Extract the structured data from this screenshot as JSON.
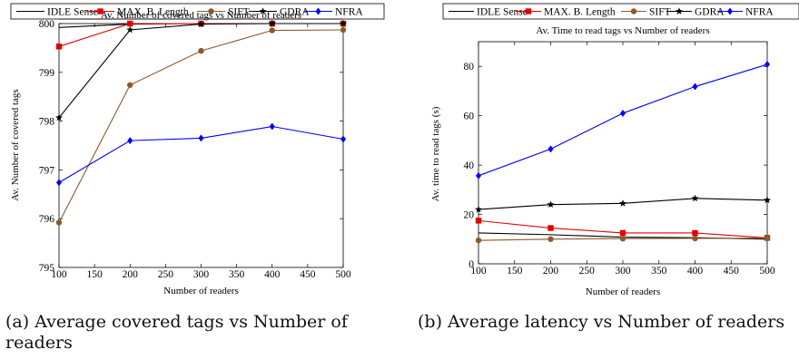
{
  "captions": {
    "a": "(a) Average covered tags vs Number of readers",
    "b": "(b) Average latency vs Number of readers"
  },
  "chart_data": [
    {
      "type": "line",
      "title": "Av. Number of covered tags vs Number of readers",
      "xlabel": "Number of readers",
      "ylabel": "Av. Number of covered tags",
      "xlim": [
        100,
        500
      ],
      "ylim": [
        795,
        800
      ],
      "xticks": [
        100,
        150,
        200,
        250,
        300,
        350,
        400,
        450,
        500
      ],
      "yticks": [
        795,
        796,
        797,
        798,
        799,
        800
      ],
      "x": [
        100,
        200,
        300,
        400,
        500
      ],
      "legend": "top, above plot",
      "grid": false,
      "series": [
        {
          "name": "IDLE Sense",
          "color": "#000000",
          "marker": "none",
          "values": [
            799.92,
            799.99,
            800.0,
            800.0,
            800.0
          ]
        },
        {
          "name": "MAX. B. Length",
          "color": "#e00000",
          "marker": "square",
          "values": [
            799.53,
            800.0,
            800.0,
            800.0,
            800.0
          ]
        },
        {
          "name": "SIFT",
          "color": "#8b5a2b",
          "marker": "circle",
          "values": [
            795.92,
            798.74,
            799.44,
            799.86,
            799.87
          ]
        },
        {
          "name": "GDRA",
          "color": "#000000",
          "marker": "star",
          "values": [
            798.07,
            799.87,
            799.99,
            800.0,
            800.0
          ]
        },
        {
          "name": "NFRA",
          "color": "#0000ff",
          "marker": "diamond",
          "values": [
            796.74,
            797.6,
            797.65,
            797.89,
            797.63
          ]
        }
      ]
    },
    {
      "type": "line",
      "title": "Av. Time to read tags vs Number of readers",
      "xlabel": "Number of readers",
      "ylabel": "Av. time to read tags (s)",
      "xlim": [
        100,
        500
      ],
      "ylim": [
        0,
        90
      ],
      "xticks": [
        100,
        150,
        200,
        250,
        300,
        350,
        400,
        450,
        500
      ],
      "yticks": [
        0,
        20,
        40,
        60,
        80
      ],
      "x": [
        100,
        200,
        300,
        400,
        500
      ],
      "legend": "top, above plot",
      "grid": false,
      "series": [
        {
          "name": "IDLE Sense",
          "color": "#000000",
          "marker": "none",
          "values": [
            12.5,
            11.8,
            10.8,
            10.6,
            10.0
          ]
        },
        {
          "name": "MAX. B. Length",
          "color": "#e00000",
          "marker": "square",
          "values": [
            17.5,
            14.5,
            12.5,
            12.5,
            10.5
          ]
        },
        {
          "name": "SIFT",
          "color": "#8b5a2b",
          "marker": "circle",
          "values": [
            9.5,
            10.0,
            10.2,
            10.3,
            10.4
          ]
        },
        {
          "name": "GDRA",
          "color": "#000000",
          "marker": "star",
          "values": [
            22.0,
            24.0,
            24.5,
            26.5,
            25.8
          ]
        },
        {
          "name": "NFRA",
          "color": "#0000ff",
          "marker": "diamond",
          "values": [
            35.7,
            46.5,
            61.0,
            71.8,
            80.8
          ]
        }
      ]
    }
  ]
}
